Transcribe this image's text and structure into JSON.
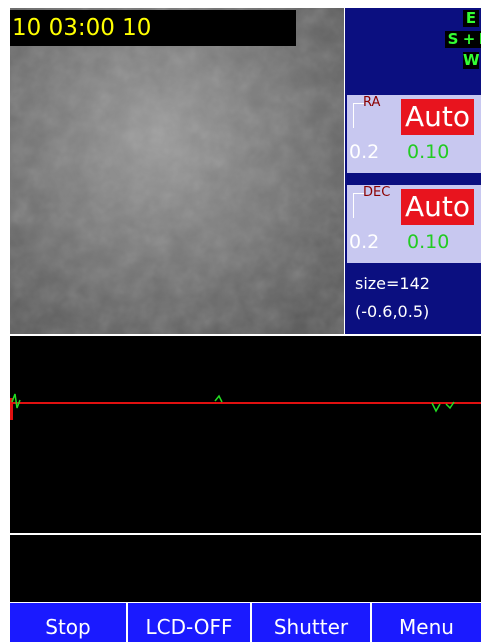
{
  "timestamp": "10 03:00 10",
  "compass": {
    "east": "E",
    "south": "S",
    "center": "+",
    "north": "N",
    "west": "W"
  },
  "ra": {
    "label": "RA",
    "mode": "Auto",
    "left_value": "0.2",
    "right_value": "0.10"
  },
  "dec": {
    "label": "DEC",
    "mode": "Auto",
    "left_value": "0.2",
    "right_value": "0.10"
  },
  "star": {
    "size": "size=142",
    "offset": "(-0.6,0.5)"
  },
  "buttons": [
    "Stop",
    "LCD-OFF",
    "Shutter",
    "Menu"
  ]
}
